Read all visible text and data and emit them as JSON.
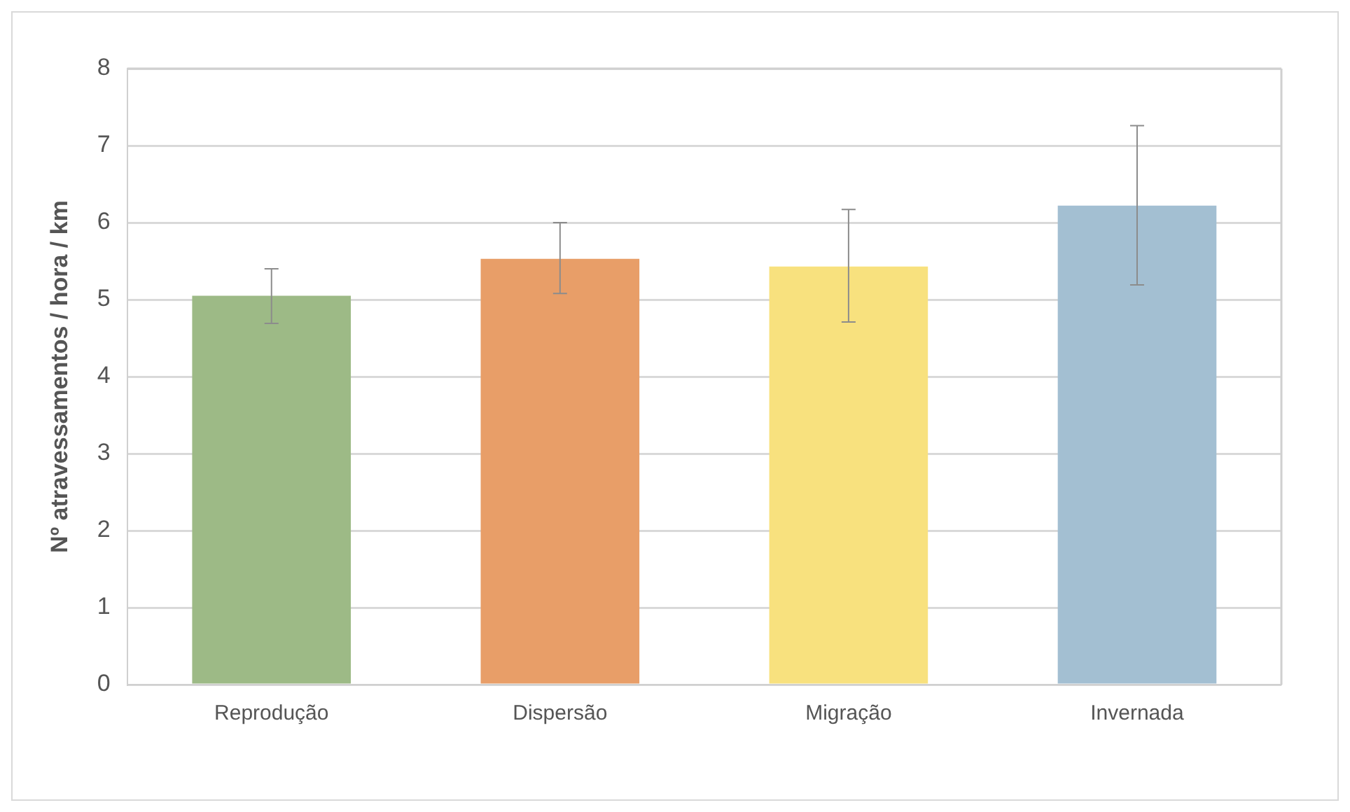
{
  "chart_data": {
    "type": "bar",
    "ylabel": "Nº atravessamentos / hora / km",
    "categories": [
      "Reprodução",
      "Dispersão",
      "Migração",
      "Invernada"
    ],
    "values": [
      5.05,
      5.53,
      5.43,
      6.22
    ],
    "colors": [
      "#9dba86",
      "#e89e68",
      "#f8e17e",
      "#a3bfd2"
    ],
    "errors": [
      [
        4.69,
        5.4
      ],
      [
        5.08,
        6.0
      ],
      [
        4.71,
        6.17
      ],
      [
        5.19,
        7.26
      ]
    ],
    "ylim": [
      0,
      8
    ],
    "yticks": [
      0,
      1,
      2,
      3,
      4,
      5,
      6,
      7,
      8
    ],
    "grid": "y",
    "legend": false
  }
}
